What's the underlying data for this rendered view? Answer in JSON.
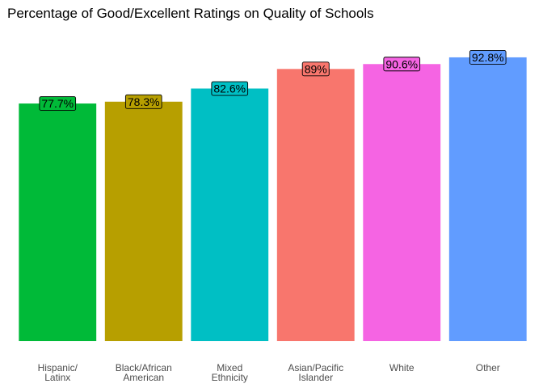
{
  "chart_data": {
    "type": "bar",
    "title": "Percentage of Good/Excellent Ratings on Quality of Schools",
    "xlabel": "",
    "ylabel": "",
    "categories": [
      [
        "Hispanic/",
        "Latinx"
      ],
      [
        "Black/African",
        "American"
      ],
      [
        "Mixed",
        "Ethnicity"
      ],
      [
        "Asian/Pacific",
        "Islander"
      ],
      [
        "White"
      ],
      [
        "Other"
      ]
    ],
    "values": [
      77.7,
      78.3,
      82.6,
      89,
      90.6,
      92.8
    ],
    "value_labels": [
      "77.7%",
      "78.3%",
      "82.6%",
      "89%",
      "90.6%",
      "92.8%"
    ],
    "colors": [
      "#00BA38",
      "#B79F00",
      "#00BFC4",
      "#F8766D",
      "#F564E3",
      "#619CFF"
    ],
    "ylim": [
      0,
      100
    ],
    "grid": false,
    "legend": "none",
    "y_axis_visible": false
  }
}
